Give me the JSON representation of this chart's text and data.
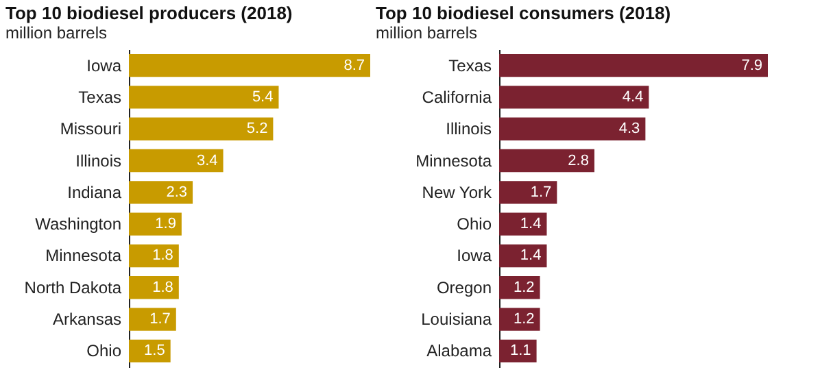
{
  "chart_data": [
    {
      "type": "bar",
      "orientation": "horizontal",
      "title": "Top 10 biodiesel producers (2018)",
      "subtitle": "million barrels",
      "categories": [
        "Iowa",
        "Texas",
        "Missouri",
        "Illinois",
        "Indiana",
        "Washington",
        "Minnesota",
        "North Dakota",
        "Arkansas",
        "Ohio"
      ],
      "values": [
        8.7,
        5.4,
        5.2,
        3.4,
        2.3,
        1.9,
        1.8,
        1.8,
        1.7,
        1.5
      ],
      "color": "#c89b00",
      "data_labels": true
    },
    {
      "type": "bar",
      "orientation": "horizontal",
      "title": "Top 10 biodiesel consumers (2018)",
      "subtitle": "million barrels",
      "categories": [
        "Texas",
        "California",
        "Illinois",
        "Minnesota",
        "New York",
        "Ohio",
        "Iowa",
        "Oregon",
        "Louisiana",
        "Alabama"
      ],
      "values": [
        7.9,
        4.4,
        4.3,
        2.8,
        1.7,
        1.4,
        1.4,
        1.2,
        1.2,
        1.1
      ],
      "color": "#7b2230",
      "data_labels": true
    }
  ]
}
